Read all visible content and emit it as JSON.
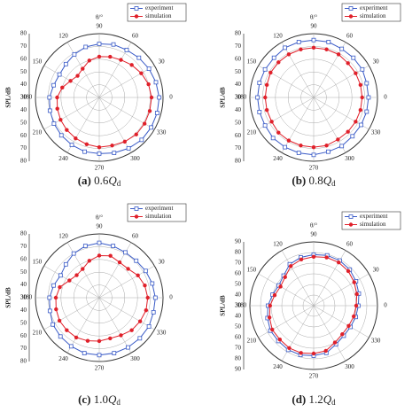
{
  "chart_data": [
    {
      "type": "polar",
      "caption": {
        "label": "(a)",
        "number": "0.6",
        "symbol": "Q",
        "subscript": "d"
      },
      "theta_label": "θ/°",
      "r_label": "SPL/dB",
      "legend": "upper right",
      "theta": [
        0,
        15,
        30,
        45,
        60,
        75,
        90,
        105,
        120,
        135,
        150,
        165,
        180,
        195,
        210,
        225,
        240,
        255,
        270,
        285,
        300,
        315,
        330,
        345
      ],
      "thetaticks": [
        0,
        30,
        60,
        90,
        120,
        150,
        180,
        210,
        240,
        270,
        300,
        330
      ],
      "rlim": [
        30,
        80
      ],
      "rticks": [
        30,
        40,
        50,
        60,
        70,
        80
      ],
      "series": [
        {
          "name": "experiment",
          "color": "#3a5bc7",
          "marker": "square",
          "values": [
            77,
            76,
            75,
            74,
            73,
            73,
            72,
            71,
            69,
            67,
            66,
            67,
            69,
            70,
            71,
            72,
            73,
            74,
            74,
            75,
            76,
            77,
            77,
            77
          ]
        },
        {
          "name": "simulation",
          "color": "#e0202a",
          "marker": "circle",
          "values": [
            71,
            70,
            68,
            66,
            64,
            63,
            62,
            60,
            56,
            54,
            56,
            60,
            63,
            64,
            65,
            66,
            67,
            68,
            69,
            69,
            70,
            71,
            71,
            71
          ]
        }
      ]
    },
    {
      "type": "polar",
      "caption": {
        "label": "(b)",
        "number": "0.8",
        "symbol": "Q",
        "subscript": "d"
      },
      "theta_label": "θ/°",
      "r_label": "SPL/dB",
      "legend": "upper right",
      "theta": [
        0,
        15,
        30,
        45,
        60,
        75,
        90,
        105,
        120,
        135,
        150,
        165,
        180,
        195,
        210,
        225,
        240,
        255,
        270,
        285,
        300,
        315,
        330,
        345
      ],
      "thetaticks": [
        0,
        30,
        60,
        90,
        120,
        150,
        180,
        210,
        240,
        270,
        300,
        330
      ],
      "rlim": [
        30,
        80
      ],
      "rticks": [
        30,
        40,
        50,
        60,
        70,
        80
      ],
      "series": [
        {
          "name": "experiment",
          "color": "#3a5bc7",
          "marker": "square",
          "values": [
            73,
            73,
            74,
            74,
            74,
            75,
            75,
            75,
            75,
            74,
            74,
            74,
            74,
            74,
            74,
            75,
            75,
            75,
            75,
            74,
            74,
            73,
            73,
            73
          ]
        },
        {
          "name": "simulation",
          "color": "#e0202a",
          "marker": "circle",
          "values": [
            68,
            68,
            68,
            68,
            69,
            69,
            69,
            69,
            69,
            69,
            69,
            68,
            68,
            68,
            68,
            69,
            69,
            69,
            69,
            69,
            68,
            68,
            68,
            68
          ]
        }
      ]
    },
    {
      "type": "polar",
      "caption": {
        "label": "(c)",
        "number": "1.0",
        "symbol": "Q",
        "subscript": "d"
      },
      "theta_label": "θ/°",
      "r_label": "SPL/dB",
      "legend": "upper right",
      "theta": [
        0,
        15,
        30,
        45,
        60,
        75,
        90,
        105,
        120,
        135,
        150,
        165,
        180,
        195,
        210,
        225,
        240,
        255,
        270,
        285,
        300,
        315,
        330,
        345
      ],
      "thetaticks": [
        0,
        30,
        60,
        90,
        120,
        150,
        180,
        210,
        240,
        270,
        300,
        330
      ],
      "rlim": [
        30,
        80
      ],
      "rticks": [
        30,
        40,
        50,
        60,
        70,
        80
      ],
      "series": [
        {
          "name": "experiment",
          "color": "#3a5bc7",
          "marker": "square",
          "values": [
            74,
            73,
            72,
            71,
            71,
            72,
            73,
            72,
            70,
            67,
            65,
            67,
            69,
            70,
            72,
            73,
            74,
            75,
            75,
            75,
            75,
            75,
            75,
            74
          ]
        },
        {
          "name": "simulation",
          "color": "#e0202a",
          "marker": "circle",
          "values": [
            68,
            67,
            65,
            62,
            62,
            64,
            63,
            60,
            56,
            55,
            57,
            62,
            64,
            65,
            66,
            66,
            66,
            65,
            64,
            63,
            64,
            66,
            67,
            68
          ]
        }
      ]
    },
    {
      "type": "polar",
      "caption": {
        "label": "(d)",
        "number": "1.2",
        "symbol": "Q",
        "subscript": "d"
      },
      "theta_label": "θ/°",
      "r_label": "SPL/dB",
      "legend": "upper right",
      "theta": [
        0,
        15,
        30,
        45,
        60,
        75,
        90,
        105,
        120,
        135,
        150,
        165,
        180,
        195,
        210,
        225,
        240,
        255,
        270,
        285,
        300,
        315,
        330,
        345
      ],
      "thetaticks": [
        0,
        30,
        60,
        90,
        120,
        150,
        180,
        210,
        240,
        270,
        300,
        330
      ],
      "rlim": [
        30,
        90
      ],
      "rticks": [
        30,
        40,
        50,
        60,
        70,
        80,
        90
      ],
      "series": [
        {
          "name": "experiment",
          "color": "#3a5bc7",
          "marker": "square",
          "values": [
            72,
            74,
            76,
            78,
            79,
            79,
            78,
            77,
            75,
            70,
            68,
            70,
            73,
            75,
            77,
            77,
            78,
            78,
            77,
            76,
            72,
            70,
            70,
            71
          ]
        },
        {
          "name": "simulation",
          "color": "#e0202a",
          "marker": "circle",
          "values": [
            70,
            72,
            74,
            76,
            77,
            77,
            76,
            75,
            73,
            68,
            66,
            68,
            71,
            73,
            75,
            75,
            76,
            76,
            75,
            74,
            70,
            68,
            68,
            69
          ]
        }
      ]
    }
  ]
}
